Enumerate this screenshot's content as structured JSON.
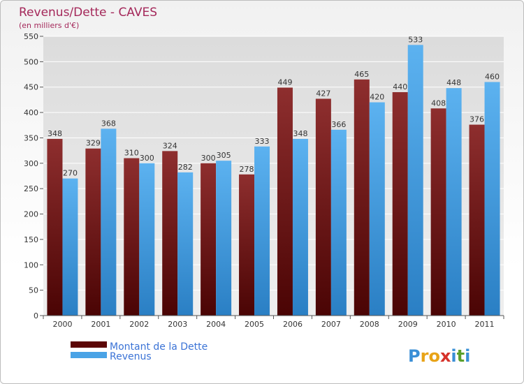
{
  "chart_data": {
    "type": "bar",
    "title": "Revenus/Dette - CAVES",
    "subtitle": "(en milliers d'€)",
    "categories": [
      "2000",
      "2001",
      "2002",
      "2003",
      "2004",
      "2005",
      "2006",
      "2007",
      "2008",
      "2009",
      "2010",
      "2011"
    ],
    "series": [
      {
        "name": "Montant de la Dette",
        "color": "#7a1b1b",
        "values": [
          348,
          329,
          310,
          324,
          300,
          278,
          449,
          427,
          465,
          440,
          408,
          376
        ]
      },
      {
        "name": "Revenus",
        "color": "#4aa3e6",
        "values": [
          270,
          368,
          300,
          282,
          305,
          333,
          348,
          366,
          420,
          533,
          448,
          460
        ]
      }
    ],
    "ylim": [
      0,
      550
    ],
    "yticks": [
      0,
      50,
      100,
      150,
      200,
      250,
      300,
      350,
      400,
      450,
      500,
      550
    ],
    "grid": true,
    "legend": "bottom-left"
  },
  "logo": {
    "letters": [
      "P",
      "r",
      "o",
      "x",
      "i",
      "t",
      "i"
    ],
    "colors": [
      "#3a8fd6",
      "#e8a317",
      "#e8a317",
      "#d6322a",
      "#3a8fd6",
      "#5aa02c",
      "#3a8fd6"
    ]
  }
}
